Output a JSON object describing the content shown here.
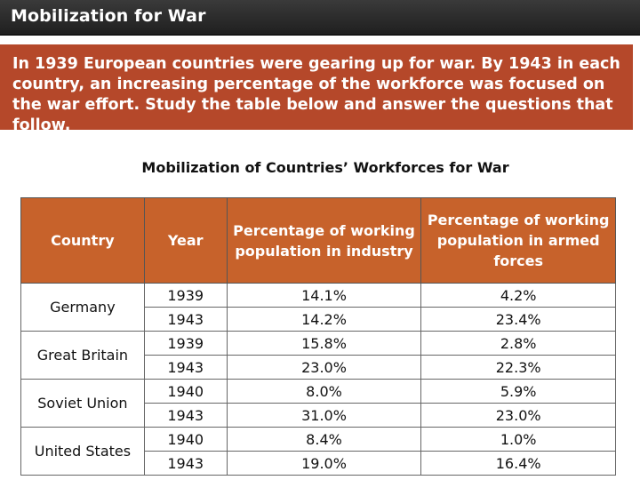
{
  "header": {
    "title": "Mobilization for War"
  },
  "intro": {
    "text": "In 1939 European countries were gearing up for war. By 1943 in each country, an increasing percentage of the workforce was focused on the war effort. Study the table below and answer the questions that follow."
  },
  "table": {
    "title": "Mobilization of Countries’ Workforces for War",
    "columns": [
      "Country",
      "Year",
      "Percentage of working population in industry",
      "Percentage of working population in armed forces"
    ],
    "groups": [
      {
        "country": "Germany",
        "rows": [
          {
            "year": "1939",
            "industry": "14.1%",
            "armed": "4.2%"
          },
          {
            "year": "1943",
            "industry": "14.2%",
            "armed": "23.4%"
          }
        ]
      },
      {
        "country": "Great Britain",
        "rows": [
          {
            "year": "1939",
            "industry": "15.8%",
            "armed": "2.8%"
          },
          {
            "year": "1943",
            "industry": "23.0%",
            "armed": "22.3%"
          }
        ]
      },
      {
        "country": "Soviet Union",
        "rows": [
          {
            "year": "1940",
            "industry": "8.0%",
            "armed": "5.9%"
          },
          {
            "year": "1943",
            "industry": "31.0%",
            "armed": "23.0%"
          }
        ]
      },
      {
        "country": "United States",
        "rows": [
          {
            "year": "1940",
            "industry": "8.4%",
            "armed": "1.0%"
          },
          {
            "year": "1943",
            "industry": "19.0%",
            "armed": "16.4%"
          }
        ]
      }
    ]
  }
}
